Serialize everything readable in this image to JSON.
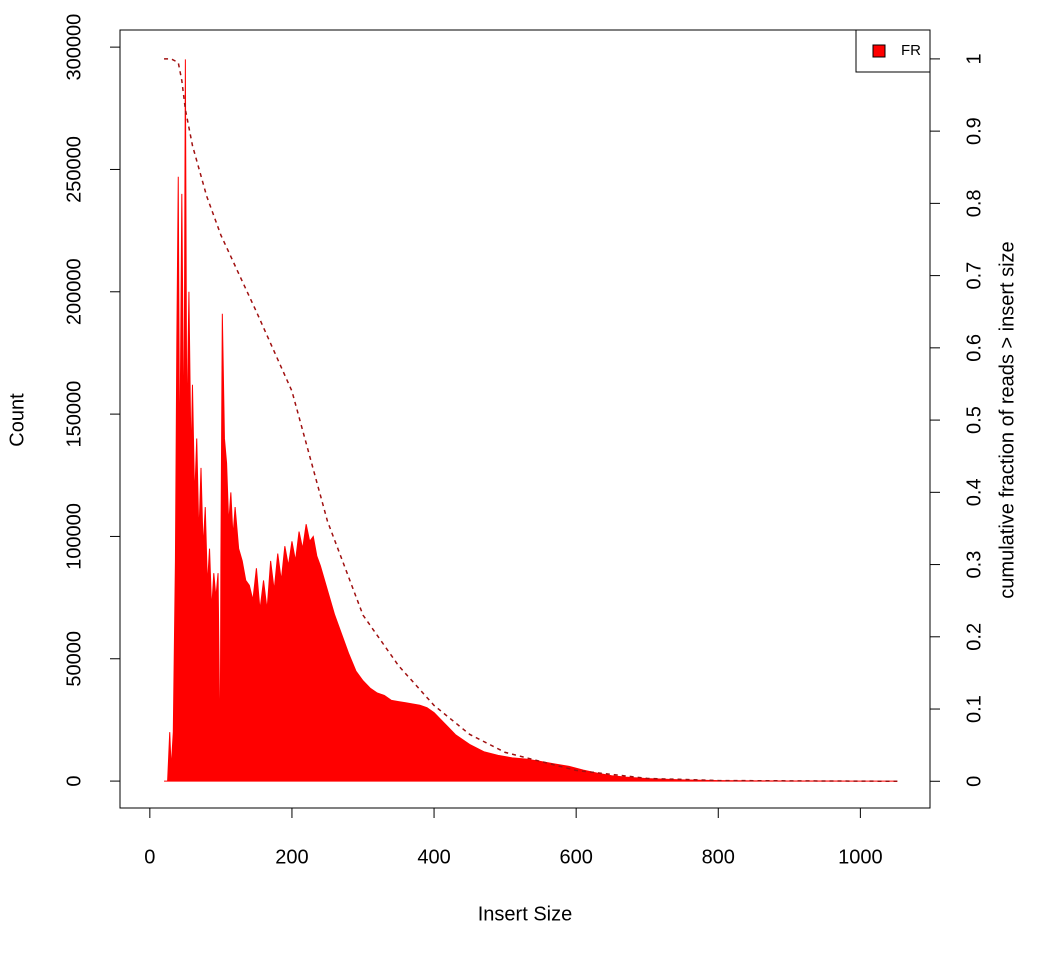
{
  "chart_data": {
    "type": "line",
    "xlabel": "Insert Size",
    "ylabel": "Count",
    "y2label": "cumulative fraction of reads > insert size",
    "xlim": [
      -42,
      1098
    ],
    "xticks": [
      0,
      200,
      400,
      600,
      800,
      1000
    ],
    "ylim": [
      -11000,
      307000
    ],
    "yticks": [
      0,
      50000,
      100000,
      150000,
      200000,
      250000,
      300000
    ],
    "y2lim": [
      -0.037,
      1.04
    ],
    "y2ticks": [
      0,
      0.1,
      0.2,
      0.3,
      0.4,
      0.5,
      0.6,
      0.7,
      0.8,
      0.9,
      1
    ],
    "legend": "topright",
    "series": [
      {
        "name": "FR",
        "color": "#ff0000",
        "type": "area",
        "x": [
          20,
          25,
          28,
          30,
          33,
          36,
          38,
          40,
          42,
          45,
          48,
          50,
          52,
          55,
          58,
          60,
          63,
          66,
          69,
          72,
          75,
          78,
          81,
          84,
          87,
          90,
          93,
          96,
          99,
          100,
          102,
          105,
          108,
          111,
          114,
          117,
          120,
          125,
          130,
          135,
          140,
          145,
          150,
          155,
          160,
          165,
          170,
          175,
          180,
          185,
          190,
          195,
          200,
          205,
          210,
          215,
          220,
          225,
          230,
          235,
          240,
          250,
          260,
          270,
          280,
          290,
          300,
          310,
          320,
          330,
          340,
          350,
          360,
          370,
          380,
          390,
          400,
          410,
          420,
          430,
          440,
          450,
          470,
          490,
          510,
          530,
          550,
          570,
          590,
          610,
          630,
          650,
          670,
          700,
          750,
          800,
          850,
          900,
          950,
          1000,
          1052
        ],
        "values": [
          0,
          0,
          20000,
          5000,
          20000,
          90000,
          180000,
          247000,
          120000,
          240000,
          130000,
          295000,
          140000,
          200000,
          130000,
          162000,
          115000,
          140000,
          100000,
          128000,
          95000,
          112000,
          80000,
          95000,
          70000,
          85000,
          75000,
          85000,
          5000,
          90000,
          191000,
          140000,
          130000,
          105000,
          118000,
          100000,
          112000,
          95000,
          90000,
          82000,
          80000,
          74000,
          87000,
          70000,
          82000,
          70000,
          90000,
          78000,
          93000,
          82000,
          96000,
          88000,
          98000,
          90000,
          102000,
          95000,
          105000,
          98000,
          100000,
          92000,
          88000,
          78000,
          68000,
          60000,
          52000,
          45000,
          41000,
          38000,
          36000,
          35000,
          33000,
          32500,
          32000,
          31500,
          31000,
          30000,
          28000,
          25000,
          22000,
          19000,
          17000,
          15000,
          12000,
          10500,
          9500,
          9000,
          8000,
          7000,
          6000,
          4500,
          3200,
          2200,
          1600,
          1000,
          500,
          200,
          80,
          30,
          10,
          5,
          0
        ]
      },
      {
        "color": "#a01010",
        "type": "dashed",
        "axis": "y2",
        "x": [
          20,
          30,
          40,
          45,
          50,
          60,
          80,
          100,
          150,
          200,
          250,
          300,
          350,
          400,
          450,
          500,
          600,
          700,
          800,
          1052
        ],
        "values": [
          1.0,
          1.0,
          0.995,
          0.97,
          0.93,
          0.88,
          0.81,
          0.756,
          0.65,
          0.54,
          0.36,
          0.23,
          0.16,
          0.105,
          0.065,
          0.04,
          0.015,
          0.004,
          0.001,
          0
        ]
      }
    ]
  }
}
